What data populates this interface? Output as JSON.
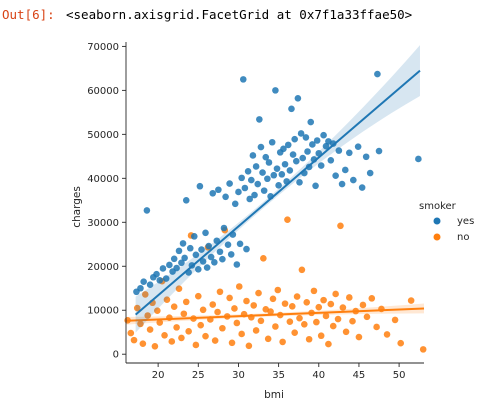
{
  "cell": {
    "prompt": "Out[6]:",
    "output_text": "<seaborn.axisgrid.FacetGrid at 0x7f1a33ffae50>"
  },
  "chart_data": {
    "type": "scatter",
    "xlabel": "bmi",
    "ylabel": "charges",
    "xlim": [
      16,
      53.1
    ],
    "ylim": [
      -2000,
      71000
    ],
    "xticks": [
      20,
      25,
      30,
      35,
      40,
      45,
      50
    ],
    "yticks": [
      0,
      10000,
      20000,
      30000,
      40000,
      50000,
      60000,
      70000
    ],
    "legend": {
      "title": "smoker",
      "placement": "right",
      "entries": [
        "yes",
        "no"
      ]
    },
    "colors": {
      "yes": "#1f77b4",
      "no": "#ff7f0e"
    },
    "series": [
      {
        "name": "yes",
        "regression": {
          "x": [
            17.2,
            52.6
          ],
          "y": [
            9000,
            64500
          ]
        },
        "points": [
          [
            17.3,
            14200
          ],
          [
            17.8,
            15000
          ],
          [
            18.2,
            16500
          ],
          [
            18.6,
            32700
          ],
          [
            19.0,
            15800
          ],
          [
            19.4,
            17500
          ],
          [
            19.8,
            18200
          ],
          [
            20.2,
            16800
          ],
          [
            20.6,
            19500
          ],
          [
            21.0,
            17200
          ],
          [
            21.4,
            20300
          ],
          [
            21.8,
            18800
          ],
          [
            22.0,
            21700
          ],
          [
            22.3,
            19600
          ],
          [
            22.6,
            23500
          ],
          [
            22.9,
            20800
          ],
          [
            23.1,
            25200
          ],
          [
            23.3,
            21900
          ],
          [
            23.5,
            35000
          ],
          [
            23.8,
            18600
          ],
          [
            24.0,
            24100
          ],
          [
            24.2,
            20200
          ],
          [
            24.5,
            26800
          ],
          [
            24.7,
            22600
          ],
          [
            25.0,
            19300
          ],
          [
            25.2,
            38200
          ],
          [
            25.4,
            23800
          ],
          [
            25.6,
            21100
          ],
          [
            25.9,
            27600
          ],
          [
            26.1,
            19700
          ],
          [
            26.3,
            24600
          ],
          [
            26.6,
            22100
          ],
          [
            26.8,
            36600
          ],
          [
            27.0,
            20900
          ],
          [
            27.3,
            25800
          ],
          [
            27.5,
            37400
          ],
          [
            27.7,
            23300
          ],
          [
            28.0,
            21600
          ],
          [
            28.2,
            28700
          ],
          [
            28.4,
            35800
          ],
          [
            28.7,
            24900
          ],
          [
            28.9,
            38800
          ],
          [
            29.1,
            22700
          ],
          [
            29.3,
            27200
          ],
          [
            29.6,
            34200
          ],
          [
            29.8,
            20400
          ],
          [
            30.0,
            36900
          ],
          [
            30.2,
            25100
          ],
          [
            30.4,
            40100
          ],
          [
            30.6,
            62500
          ],
          [
            30.8,
            37800
          ],
          [
            31.0,
            23900
          ],
          [
            31.2,
            41600
          ],
          [
            31.4,
            35300
          ],
          [
            31.6,
            39600
          ],
          [
            31.8,
            45200
          ],
          [
            32.0,
            36200
          ],
          [
            32.2,
            42700
          ],
          [
            32.4,
            38700
          ],
          [
            32.6,
            53400
          ],
          [
            32.8,
            47100
          ],
          [
            33.0,
            41300
          ],
          [
            33.2,
            37200
          ],
          [
            33.4,
            44800
          ],
          [
            33.6,
            39900
          ],
          [
            33.8,
            43600
          ],
          [
            34.0,
            35900
          ],
          [
            34.2,
            48200
          ],
          [
            34.4,
            40700
          ],
          [
            34.6,
            60000
          ],
          [
            34.8,
            42200
          ],
          [
            35.0,
            38400
          ],
          [
            35.2,
            45900
          ],
          [
            35.4,
            40900
          ],
          [
            35.6,
            46700
          ],
          [
            35.8,
            43200
          ],
          [
            36.0,
            39300
          ],
          [
            36.2,
            47600
          ],
          [
            36.4,
            41800
          ],
          [
            36.6,
            55800
          ],
          [
            36.8,
            45400
          ],
          [
            37.0,
            48900
          ],
          [
            37.2,
            43900
          ],
          [
            37.4,
            58200
          ],
          [
            37.6,
            39100
          ],
          [
            37.8,
            50200
          ],
          [
            38.0,
            44600
          ],
          [
            38.2,
            41200
          ],
          [
            38.4,
            49300
          ],
          [
            38.6,
            46100
          ],
          [
            38.8,
            42600
          ],
          [
            39.0,
            52800
          ],
          [
            39.2,
            47700
          ],
          [
            39.4,
            44300
          ],
          [
            39.6,
            38300
          ],
          [
            39.8,
            48600
          ],
          [
            40.0,
            45700
          ],
          [
            40.3,
            42900
          ],
          [
            40.6,
            49800
          ],
          [
            40.9,
            47300
          ],
          [
            41.2,
            48400
          ],
          [
            41.5,
            44100
          ],
          [
            41.8,
            47900
          ],
          [
            42.1,
            40600
          ],
          [
            42.5,
            46300
          ],
          [
            42.9,
            38700
          ],
          [
            43.3,
            41900
          ],
          [
            43.8,
            45800
          ],
          [
            44.3,
            39600
          ],
          [
            44.9,
            47200
          ],
          [
            45.4,
            37900
          ],
          [
            45.9,
            44900
          ],
          [
            46.4,
            41200
          ],
          [
            47.3,
            63700
          ],
          [
            47.5,
            46200
          ],
          [
            52.4,
            44400
          ]
        ]
      },
      {
        "name": "no",
        "regression": {
          "x": [
            16.0,
            53.1
          ],
          "y": [
            7600,
            10400
          ]
        },
        "points": [
          [
            16.2,
            7700
          ],
          [
            16.6,
            4800
          ],
          [
            17.0,
            3200
          ],
          [
            17.4,
            10500
          ],
          [
            17.8,
            6900
          ],
          [
            18.1,
            2400
          ],
          [
            18.4,
            13600
          ],
          [
            18.7,
            8800
          ],
          [
            19.0,
            5600
          ],
          [
            19.3,
            11700
          ],
          [
            19.6,
            1800
          ],
          [
            19.9,
            9900
          ],
          [
            20.2,
            7200
          ],
          [
            20.5,
            16600
          ],
          [
            20.8,
            4300
          ],
          [
            21.1,
            12400
          ],
          [
            21.4,
            8300
          ],
          [
            21.7,
            2900
          ],
          [
            22.0,
            10800
          ],
          [
            22.3,
            6100
          ],
          [
            22.6,
            14900
          ],
          [
            22.9,
            3700
          ],
          [
            23.2,
            9200
          ],
          [
            23.5,
            11900
          ],
          [
            23.8,
            5200
          ],
          [
            24.1,
            27000
          ],
          [
            24.4,
            8100
          ],
          [
            24.7,
            2100
          ],
          [
            25.0,
            13200
          ],
          [
            25.3,
            6600
          ],
          [
            25.6,
            10100
          ],
          [
            25.9,
            4100
          ],
          [
            26.2,
            24300
          ],
          [
            26.5,
            7900
          ],
          [
            26.8,
            11300
          ],
          [
            27.1,
            3100
          ],
          [
            27.4,
            9600
          ],
          [
            27.7,
            14200
          ],
          [
            28.0,
            5900
          ],
          [
            28.3,
            28200
          ],
          [
            28.6,
            8600
          ],
          [
            28.9,
            12800
          ],
          [
            29.2,
            2600
          ],
          [
            29.5,
            10400
          ],
          [
            29.8,
            7100
          ],
          [
            30.1,
            15400
          ],
          [
            30.4,
            4600
          ],
          [
            30.7,
            9100
          ],
          [
            31.0,
            12100
          ],
          [
            31.3,
            1900
          ],
          [
            31.6,
            8400
          ],
          [
            31.9,
            11100
          ],
          [
            32.2,
            5400
          ],
          [
            32.5,
            13900
          ],
          [
            32.8,
            7600
          ],
          [
            33.1,
            21800
          ],
          [
            33.4,
            10200
          ],
          [
            33.7,
            3500
          ],
          [
            34.0,
            9700
          ],
          [
            34.3,
            12600
          ],
          [
            34.6,
            6300
          ],
          [
            34.9,
            14600
          ],
          [
            35.2,
            8900
          ],
          [
            35.5,
            2800
          ],
          [
            35.8,
            11500
          ],
          [
            36.1,
            30600
          ],
          [
            36.4,
            7400
          ],
          [
            36.7,
            10900
          ],
          [
            37.0,
            4900
          ],
          [
            37.3,
            13100
          ],
          [
            37.6,
            8200
          ],
          [
            37.9,
            19200
          ],
          [
            38.2,
            6800
          ],
          [
            38.5,
            11800
          ],
          [
            38.8,
            3400
          ],
          [
            39.1,
            9400
          ],
          [
            39.4,
            14400
          ],
          [
            39.7,
            7300
          ],
          [
            40.0,
            10700
          ],
          [
            40.3,
            4200
          ],
          [
            40.6,
            12300
          ],
          [
            40.9,
            8700
          ],
          [
            41.2,
            2300
          ],
          [
            41.5,
            11400
          ],
          [
            41.8,
            6400
          ],
          [
            42.1,
            13700
          ],
          [
            42.4,
            8000
          ],
          [
            42.7,
            29200
          ],
          [
            43.0,
            10600
          ],
          [
            43.4,
            5100
          ],
          [
            43.8,
            12900
          ],
          [
            44.2,
            7500
          ],
          [
            44.6,
            9800
          ],
          [
            45.0,
            3900
          ],
          [
            45.5,
            11200
          ],
          [
            46.0,
            8500
          ],
          [
            46.6,
            12700
          ],
          [
            47.2,
            6200
          ],
          [
            47.8,
            10300
          ],
          [
            48.5,
            4500
          ],
          [
            49.5,
            7800
          ],
          [
            50.2,
            2500
          ],
          [
            51.5,
            12200
          ],
          [
            53.0,
            1100
          ]
        ]
      }
    ]
  }
}
